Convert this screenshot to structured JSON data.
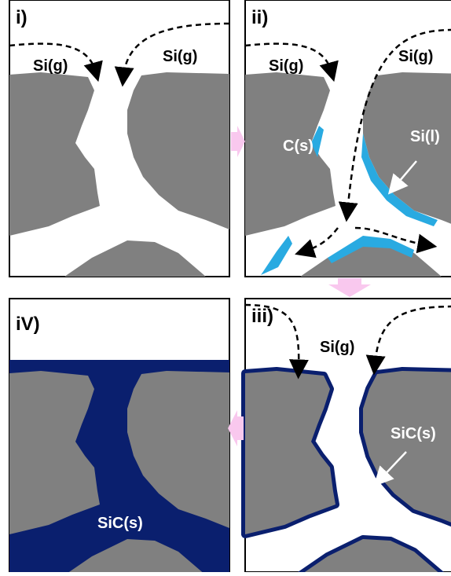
{
  "panels": [
    {
      "label": "i)",
      "annotations": [
        "Si(g)",
        "Si(g)"
      ]
    },
    {
      "label": "ii)",
      "annotations": [
        "Si(g)",
        "Si(g)",
        "C(s)",
        "Si(l)"
      ]
    },
    {
      "label": "iii)",
      "annotations": [
        "Si(g)",
        "SiC(s)"
      ]
    },
    {
      "label": "iV)",
      "annotations": [
        "SiC(s)"
      ]
    }
  ]
}
